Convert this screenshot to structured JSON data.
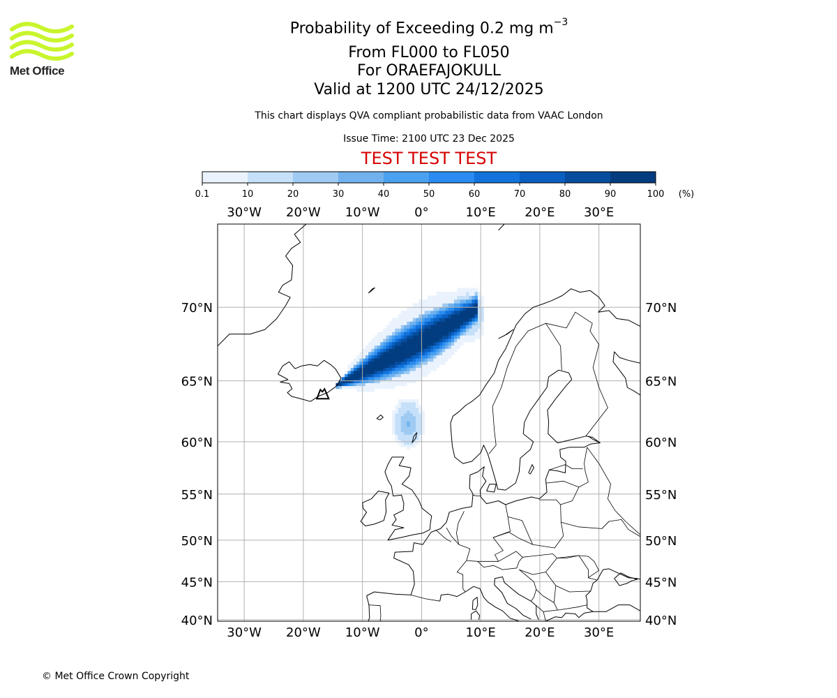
{
  "header": {
    "title_prefix": "Probability of Exceeding 0.2 mg m",
    "title_exponent": "−3",
    "flight_levels": "From FL000 to FL050",
    "volcano": "For ORAEFAJOKULL",
    "valid_time": "Valid at 1200 UTC 24/12/2025",
    "disclaimer": "This chart displays QVA compliant probabilistic data from VAAC London",
    "issue_time": "Issue Time: 2100 UTC 23 Dec 2025",
    "test_banner": "TEST TEST TEST",
    "test_color": "#d60000"
  },
  "logo": {
    "text": "Met Office",
    "color": "#c8f52c"
  },
  "footer": {
    "copyright": "© Met Office Crown Copyright"
  },
  "colorbar": {
    "bounds": [
      "0.1",
      "10",
      "20",
      "30",
      "40",
      "50",
      "60",
      "70",
      "80",
      "90",
      "100"
    ],
    "unit": "(%)",
    "colors": [
      "#eaf3fd",
      "#c6e0f9",
      "#9ecaf3",
      "#71b2ee",
      "#4aa1ef",
      "#2a8cf0",
      "#1273dc",
      "#0a5fc0",
      "#064d9e",
      "#033d80",
      "#012a5e"
    ]
  },
  "map": {
    "lon_range": [
      -34.5,
      37
    ],
    "lat_range": [
      39.8,
      74.5
    ],
    "lon_ticks": [
      {
        "value": -30,
        "label": "30°W"
      },
      {
        "value": -20,
        "label": "20°W"
      },
      {
        "value": -10,
        "label": "10°W"
      },
      {
        "value": 0,
        "label": "0°"
      },
      {
        "value": 10,
        "label": "10°E"
      },
      {
        "value": 20,
        "label": "20°E"
      },
      {
        "value": 30,
        "label": "30°E"
      }
    ],
    "lat_ticks": [
      {
        "value": 70,
        "label": "70°N"
      },
      {
        "value": 65,
        "label": "65°N"
      },
      {
        "value": 60,
        "label": "60°N"
      },
      {
        "value": 55,
        "label": "55°N"
      },
      {
        "value": 50,
        "label": "50°N"
      },
      {
        "value": 45,
        "label": "45°N"
      },
      {
        "value": 40,
        "label": "40°N"
      }
    ],
    "volcano_location": {
      "lon": -16.65,
      "lat": 64.0
    }
  }
}
